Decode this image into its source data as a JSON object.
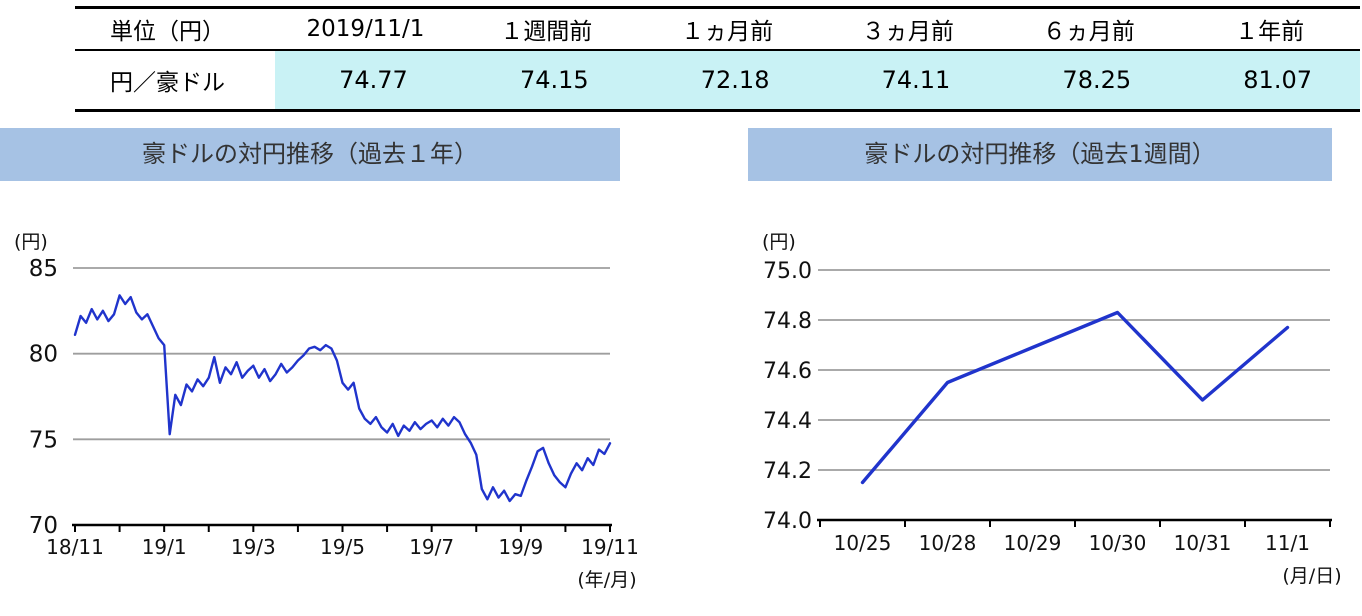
{
  "colors": {
    "line": "#2034cc",
    "grid": "#9e9e9e",
    "panel_title_bg": "#a6c2e4",
    "table_value_bg": "#c9f2f5",
    "axis": "#000000"
  },
  "table": {
    "headers": [
      "単位（円）",
      "2019/11/1",
      "１週間前",
      "１ヵ月前",
      "３ヵ月前",
      "６ヵ月前",
      "１年前"
    ],
    "rows": [
      {
        "label": "円／豪ドル",
        "values": [
          "74.77",
          "74.15",
          "72.18",
          "74.11",
          "78.25",
          "81.07"
        ]
      }
    ]
  },
  "chart_data": [
    {
      "type": "line",
      "title": "豪ドルの対円推移（過去１年）",
      "ylabel": "(円)",
      "xlabel": "(年/月)",
      "ylim": [
        70,
        85
      ],
      "yticks": [
        "70",
        "75",
        "80",
        "85"
      ],
      "xtick_labels": [
        "18/11",
        "19/1",
        "19/3",
        "19/5",
        "19/7",
        "19/9",
        "19/11"
      ],
      "x_span_months": 12,
      "grid": true,
      "legend": "none",
      "values": [
        81.1,
        82.2,
        81.8,
        82.6,
        82.0,
        82.5,
        81.9,
        82.3,
        83.4,
        82.9,
        83.3,
        82.4,
        82.0,
        82.3,
        81.6,
        80.9,
        80.5,
        75.3,
        77.6,
        77.0,
        78.2,
        77.8,
        78.5,
        78.1,
        78.6,
        79.8,
        78.3,
        79.2,
        78.8,
        79.5,
        78.6,
        79.0,
        79.3,
        78.6,
        79.1,
        78.4,
        78.8,
        79.4,
        78.9,
        79.2,
        79.6,
        79.9,
        80.3,
        80.4,
        80.2,
        80.5,
        80.3,
        79.6,
        78.3,
        77.9,
        78.3,
        76.8,
        76.2,
        75.9,
        76.3,
        75.7,
        75.4,
        75.9,
        75.2,
        75.8,
        75.5,
        76.0,
        75.6,
        75.9,
        76.1,
        75.7,
        76.2,
        75.8,
        76.3,
        76.0,
        75.3,
        74.8,
        74.1,
        72.1,
        71.5,
        72.2,
        71.6,
        72.0,
        71.4,
        71.8,
        71.7,
        72.6,
        73.4,
        74.3,
        74.5,
        73.6,
        72.9,
        72.5,
        72.2,
        73.0,
        73.6,
        73.2,
        73.9,
        73.5,
        74.4,
        74.15,
        74.77
      ]
    },
    {
      "type": "line",
      "title": "豪ドルの対円推移（過去1週間）",
      "ylabel": "(円)",
      "xlabel": "(月/日)",
      "ylim": [
        74.0,
        75.0
      ],
      "yticks": [
        "74.0",
        "74.2",
        "74.4",
        "74.6",
        "74.8",
        "75.0"
      ],
      "categories": [
        "10/25",
        "10/28",
        "10/29",
        "10/30",
        "10/31",
        "11/1"
      ],
      "grid": true,
      "legend": "none",
      "values": [
        74.15,
        74.55,
        74.69,
        74.83,
        74.48,
        74.77
      ]
    }
  ]
}
